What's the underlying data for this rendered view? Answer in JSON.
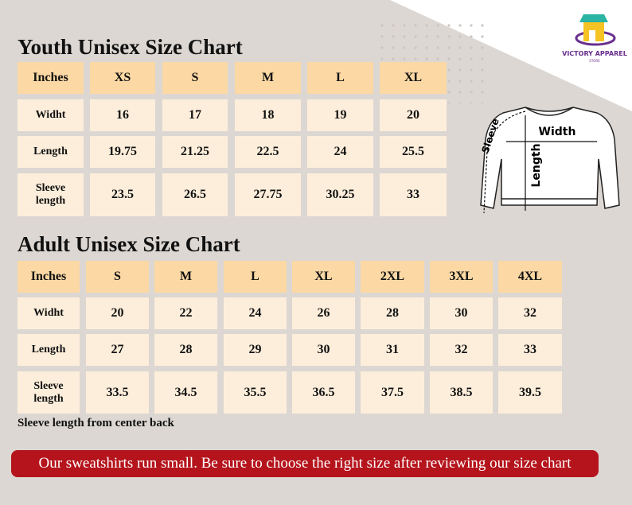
{
  "logo": {
    "name": "VICTORY APPAREL",
    "sub": "STORE"
  },
  "youth": {
    "title": "Youth Unisex Size Chart",
    "header": [
      "Inches",
      "XS",
      "S",
      "M",
      "L",
      "XL"
    ],
    "rows": [
      [
        "Widht",
        "16",
        "17",
        "18",
        "19",
        "20"
      ],
      [
        "Length",
        "19.75",
        "21.25",
        "22.5",
        "24",
        "25.5"
      ],
      [
        "Sleeve length",
        "23.5",
        "26.5",
        "27.75",
        "30.25",
        "33"
      ]
    ]
  },
  "adult": {
    "title": "Adult Unisex Size Chart",
    "header": [
      "Inches",
      "S",
      "M",
      "L",
      "XL",
      "2XL",
      "3XL",
      "4XL"
    ],
    "rows": [
      [
        "Widht",
        "20",
        "22",
        "24",
        "26",
        "28",
        "30",
        "32"
      ],
      [
        "Length",
        "27",
        "28",
        "29",
        "30",
        "31",
        "32",
        "33"
      ],
      [
        "Sleeve length",
        "33.5",
        "34.5",
        "35.5",
        "36.5",
        "37.5",
        "38.5",
        "39.5"
      ]
    ]
  },
  "diagram": {
    "width": "Width",
    "length": "Length",
    "sleeve": "Sleeve"
  },
  "note": "Sleeve length from center back",
  "banner": "Our sweatshirts run small. Be sure to choose the right size after reviewing our size chart"
}
